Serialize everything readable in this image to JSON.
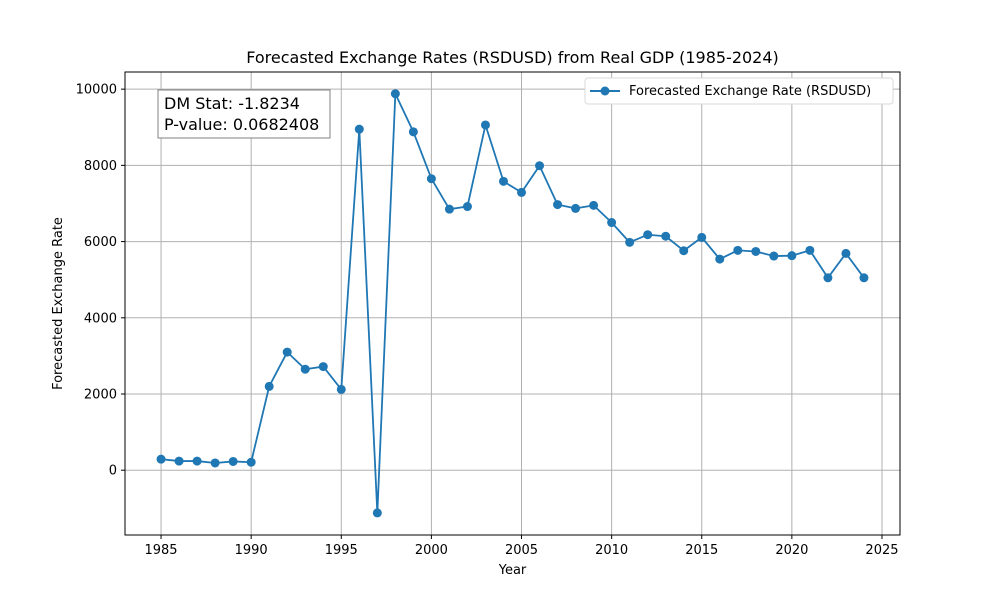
{
  "chart_data": {
    "type": "line",
    "title": "Forecasted Exchange Rates (RSDUSD) from Real GDP (1985-2024)",
    "xlabel": "Year",
    "ylabel": "Forecasted Exchange Rate",
    "xlim": [
      1983,
      2026
    ],
    "ylim": [
      -1700,
      10450
    ],
    "xticks": [
      1985,
      1990,
      1995,
      2000,
      2005,
      2010,
      2015,
      2020,
      2025
    ],
    "yticks": [
      0,
      2000,
      4000,
      6000,
      8000,
      10000
    ],
    "grid": true,
    "legend_position": "top-right",
    "series": [
      {
        "name": "Forecasted Exchange Rate (RSDUSD)",
        "color": "#1f77b4",
        "marker": "circle",
        "x": [
          1985,
          1986,
          1987,
          1988,
          1989,
          1990,
          1991,
          1992,
          1993,
          1994,
          1995,
          1996,
          1997,
          1998,
          1999,
          2000,
          2001,
          2002,
          2003,
          2004,
          2005,
          2006,
          2007,
          2008,
          2009,
          2010,
          2011,
          2012,
          2013,
          2014,
          2015,
          2016,
          2017,
          2018,
          2019,
          2020,
          2021,
          2022,
          2023,
          2024
        ],
        "values": [
          290,
          240,
          240,
          190,
          230,
          210,
          2200,
          3100,
          2650,
          2720,
          2120,
          8950,
          -1120,
          9880,
          8880,
          7650,
          6850,
          6920,
          9060,
          7580,
          7290,
          7990,
          6970,
          6870,
          6950,
          6500,
          5980,
          6180,
          6140,
          5760,
          6110,
          5540,
          5770,
          5740,
          5620,
          5630,
          5770,
          5050,
          5690,
          5050
        ]
      }
    ],
    "annotations": [
      {
        "line1": "DM Stat: -1.8234",
        "line2": "P-value: 0.0682408",
        "position": "top-left"
      }
    ]
  }
}
